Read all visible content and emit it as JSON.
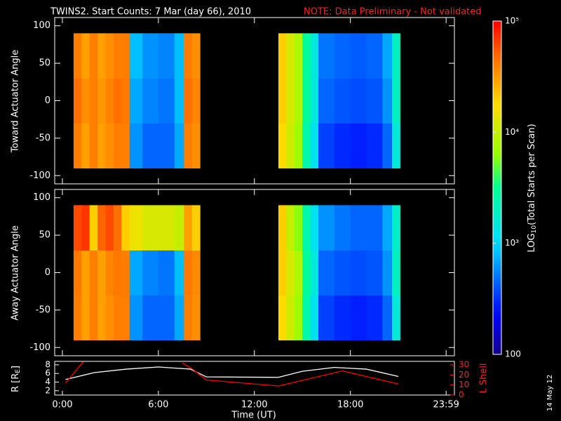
{
  "chart_data": [
    {
      "type": "heatmap",
      "title": "TWINS2. Start Counts:  7 Mar (day  66), 2010",
      "note": "NOTE: Data Preliminary - Not validated",
      "ylabel": "Toward Actuator Angle",
      "ylim": [
        -111,
        111
      ],
      "yticks": [
        100,
        50,
        0,
        -50,
        -100
      ],
      "x": [
        0.7,
        1.2,
        1.7,
        2.2,
        2.7,
        3.2,
        3.7,
        4.2,
        5,
        6,
        7,
        7.6,
        8.1,
        8.6,
        13.5,
        14,
        14.5,
        15,
        15.5,
        16,
        17,
        18,
        19,
        20,
        20.6,
        21.1
      ],
      "y": [
        -90,
        -30,
        30,
        90
      ],
      "values": [
        [
          40000,
          30000,
          40000,
          30000,
          35000,
          40000,
          40000,
          600,
          450,
          450,
          700,
          40000,
          35000,
          null,
          18000,
          11000,
          7000,
          2500,
          1200,
          350,
          300,
          280,
          300,
          450,
          1500
        ],
        [
          45000,
          35000,
          40000,
          32000,
          38000,
          45000,
          42000,
          700,
          550,
          500,
          800,
          45000,
          38000,
          null,
          20000,
          12000,
          8000,
          3000,
          1500,
          450,
          400,
          380,
          400,
          600,
          2000
        ],
        [
          40000,
          30000,
          40000,
          30000,
          35000,
          40000,
          40000,
          800,
          600,
          550,
          800,
          40000,
          35000,
          null,
          20000,
          12000,
          8000,
          3000,
          1500,
          500,
          450,
          420,
          450,
          700,
          2000
        ]
      ],
      "colorbar": {
        "label": [
          "LOG",
          "10",
          "(Total Starts per Scan)"
        ],
        "lim": [
          100,
          100000
        ],
        "log": true,
        "ticks": [
          100,
          {
            "value": 1000,
            "label": "10³"
          },
          {
            "value": 10000,
            "label": "10⁴"
          },
          {
            "value": 100000,
            "label": "10⁵"
          }
        ]
      },
      "date": "14 May 12"
    },
    {
      "type": "heatmap",
      "ylabel": "Away Actuator Angle",
      "ylim": [
        -111,
        111
      ],
      "yticks": [
        100,
        50,
        0,
        -50,
        -100
      ],
      "x": [
        0.7,
        1.2,
        1.7,
        2.2,
        2.7,
        3.2,
        3.7,
        4.2,
        5,
        6,
        7,
        7.6,
        8.1,
        8.6,
        13.5,
        14,
        14.5,
        15,
        15.5,
        16,
        17,
        18,
        19,
        20,
        20.6,
        21.1
      ],
      "y": [
        -90,
        -30,
        30,
        90
      ],
      "values": [
        [
          40000,
          30000,
          40000,
          30000,
          35000,
          40000,
          40000,
          600,
          450,
          450,
          700,
          40000,
          35000,
          null,
          18000,
          11000,
          7000,
          2500,
          1200,
          350,
          300,
          280,
          300,
          450,
          1500
        ],
        [
          42000,
          30000,
          40000,
          30000,
          38000,
          42000,
          40000,
          700,
          550,
          500,
          800,
          42000,
          36000,
          null,
          20000,
          12000,
          8000,
          3000,
          1500,
          450,
          400,
          380,
          400,
          600,
          2000
        ],
        [
          60000,
          70000,
          20000,
          50000,
          60000,
          45000,
          20000,
          15000,
          12000,
          12000,
          10000,
          30000,
          20000,
          null,
          20000,
          10000,
          6000,
          2500,
          1200,
          600,
          500,
          450,
          450,
          700,
          1800
        ]
      ]
    },
    {
      "type": "line",
      "xlabel": "Time (UT)",
      "xlim": [
        -0.48,
        24.5
      ],
      "xticks": [
        {
          "value": 0,
          "label": "0:00"
        },
        {
          "value": 6,
          "label": "6:00"
        },
        {
          "value": 12,
          "label": "12:00"
        },
        {
          "value": 18,
          "label": "18:00"
        },
        {
          "value": 23.983,
          "label": "23:59"
        }
      ],
      "ylabel": [
        "R [R",
        "E",
        "]"
      ],
      "ylim": [
        1.0,
        8.8
      ],
      "yticks": [
        2,
        4,
        6,
        8
      ],
      "y2label": "L Shell",
      "y2lim": [
        0,
        33.5
      ],
      "y2ticks": [
        0,
        10,
        20,
        30
      ],
      "series": [
        {
          "name": "R",
          "color": "#ffffff",
          "x": [
            0.2,
            2,
            4,
            6,
            8,
            9,
            13.5,
            15,
            17,
            19,
            21
          ],
          "values": [
            4.6,
            6.2,
            7,
            7.5,
            7,
            5.2,
            5.1,
            6.5,
            7.4,
            7,
            5.3
          ]
        },
        {
          "name": "L Shell",
          "color": "#ff0000",
          "axis": "y2",
          "x": [
            0.2,
            1.3,
            4,
            7.5,
            8.2,
            9,
            13.5,
            17.5,
            21
          ],
          "values": [
            12,
            33,
            null,
            32,
            25,
            15,
            9,
            24,
            11
          ]
        }
      ]
    }
  ]
}
